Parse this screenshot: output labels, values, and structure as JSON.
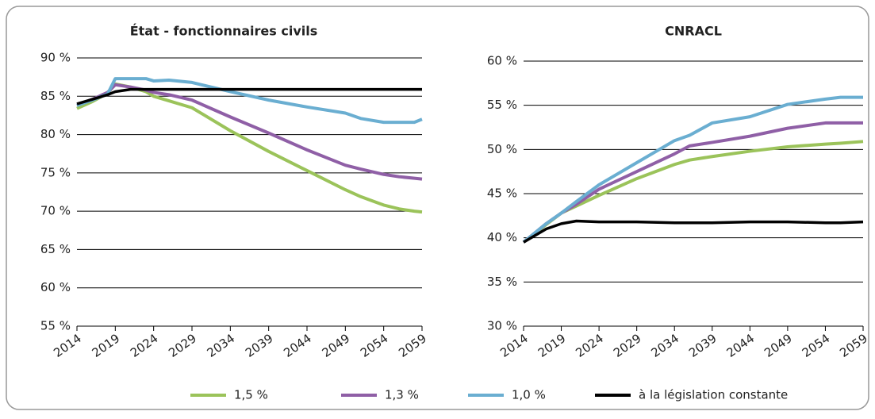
{
  "chart_data": [
    {
      "type": "line",
      "title": "État  - fonctionnaires civils",
      "x": [
        2014,
        2016,
        2018,
        2019,
        2021,
        2023,
        2024,
        2026,
        2029,
        2034,
        2039,
        2044,
        2049,
        2051,
        2054,
        2056,
        2058,
        2059
      ],
      "xlim": [
        2014,
        2059
      ],
      "xticks": [
        2014,
        2019,
        2024,
        2029,
        2034,
        2039,
        2044,
        2049,
        2054,
        2059
      ],
      "ylim": [
        55,
        90
      ],
      "yticks": [
        {
          "value": 55,
          "label": "55 %"
        },
        {
          "value": 60,
          "label": "60 %"
        },
        {
          "value": 65,
          "label": "65 %"
        },
        {
          "value": 70,
          "label": "70 %"
        },
        {
          "value": 75,
          "label": "75 %"
        },
        {
          "value": 80,
          "label": "80 %"
        },
        {
          "value": 85,
          "label": "85 %"
        },
        {
          "value": 90,
          "label": "90 %"
        }
      ],
      "grid": true,
      "series": [
        {
          "name": "1,5 %",
          "color": "#9bc35a",
          "values": [
            83.4,
            84.3,
            85.4,
            86.6,
            86.2,
            85.6,
            85.0,
            84.4,
            83.5,
            80.5,
            77.8,
            75.3,
            72.8,
            71.9,
            70.8,
            70.3,
            70.0,
            69.9
          ]
        },
        {
          "name": "1,3 %",
          "color": "#8f5fa6",
          "values": [
            83.8,
            84.6,
            85.5,
            86.5,
            86.2,
            85.8,
            85.5,
            85.2,
            84.5,
            82.3,
            80.2,
            78.0,
            76.0,
            75.5,
            74.8,
            74.5,
            74.3,
            74.2
          ]
        },
        {
          "name": "1,0 %",
          "color": "#6aaed1",
          "values": [
            83.8,
            84.5,
            85.3,
            87.3,
            87.3,
            87.3,
            87.0,
            87.1,
            86.8,
            85.6,
            84.5,
            83.6,
            82.8,
            82.1,
            81.6,
            81.6,
            81.6,
            82.0
          ]
        },
        {
          "name": "à la législation constante",
          "color": "#000000",
          "values": [
            84.0,
            84.6,
            85.2,
            85.6,
            85.9,
            85.9,
            85.9,
            85.9,
            85.9,
            85.9,
            85.9,
            85.9,
            85.9,
            85.9,
            85.9,
            85.9,
            85.9,
            85.9
          ]
        }
      ]
    },
    {
      "type": "line",
      "title": "CNRACL",
      "x": [
        2014,
        2017,
        2019,
        2021,
        2024,
        2029,
        2034,
        2036,
        2039,
        2044,
        2049,
        2054,
        2056,
        2059
      ],
      "xlim": [
        2014,
        2059
      ],
      "xticks": [
        2014,
        2019,
        2024,
        2029,
        2034,
        2039,
        2044,
        2049,
        2054,
        2059
      ],
      "ylim": [
        30,
        60
      ],
      "yticks": [
        {
          "value": 30,
          "label": "30 %"
        },
        {
          "value": 35,
          "label": "35 %"
        },
        {
          "value": 40,
          "label": "40 %"
        },
        {
          "value": 45,
          "label": "45 %"
        },
        {
          "value": 50,
          "label": "50 %"
        },
        {
          "value": 55,
          "label": "55 %"
        },
        {
          "value": 60,
          "label": "60 %"
        }
      ],
      "grid": true,
      "series": [
        {
          "name": "1,5 %",
          "color": "#9bc35a",
          "values": [
            39.5,
            41.5,
            42.8,
            43.6,
            44.8,
            46.7,
            48.3,
            48.8,
            49.2,
            49.8,
            50.3,
            50.6,
            50.7,
            50.9
          ]
        },
        {
          "name": "1,3 %",
          "color": "#8f5fa6",
          "values": [
            39.5,
            41.6,
            42.8,
            43.8,
            45.5,
            47.5,
            49.5,
            50.4,
            50.8,
            51.5,
            52.4,
            53.0,
            53.0,
            53.0
          ]
        },
        {
          "name": "1,0 %",
          "color": "#6aaed1",
          "values": [
            39.5,
            41.6,
            42.8,
            44.1,
            46.0,
            48.5,
            51.0,
            51.6,
            53.0,
            53.7,
            55.1,
            55.7,
            55.9,
            55.9
          ]
        },
        {
          "name": "à la législation constante",
          "color": "#000000",
          "values": [
            39.5,
            41.0,
            41.6,
            41.9,
            41.8,
            41.8,
            41.7,
            41.7,
            41.7,
            41.8,
            41.8,
            41.7,
            41.7,
            41.8
          ]
        }
      ]
    }
  ]
}
